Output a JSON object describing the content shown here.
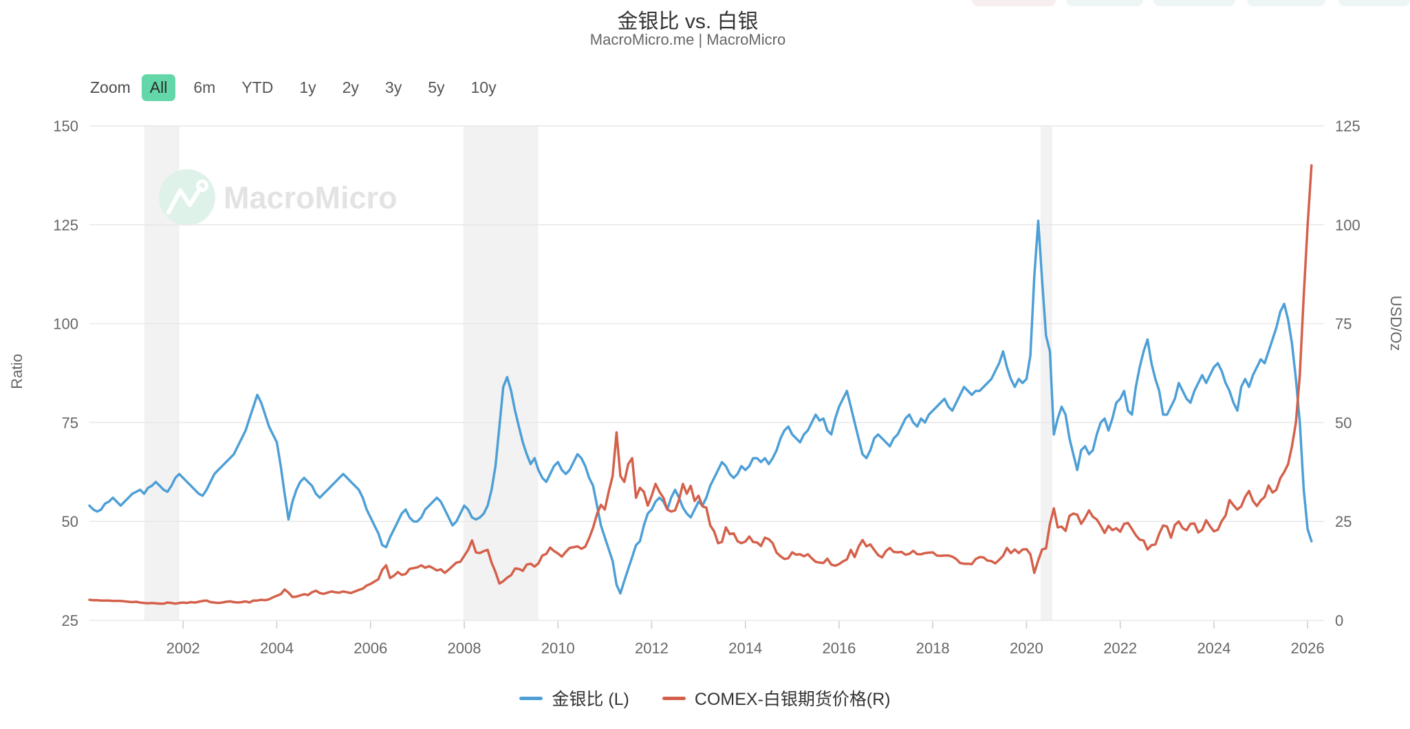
{
  "header": {
    "title": "金银比 vs. 白银",
    "subtitle": "MacroMicro.me | MacroMicro"
  },
  "top_partial_buttons": [
    "#f8eef0",
    "#eef5f5",
    "#eef5f5",
    "#eef5f5",
    "#eef5f5"
  ],
  "toolbar": {
    "zoom_label": "Zoom",
    "ranges": [
      "All",
      "6m",
      "YTD",
      "1y",
      "2y",
      "3y",
      "5y",
      "10y"
    ],
    "selected": "All",
    "selected_color": "#63d7a7"
  },
  "watermark": {
    "text": "MacroMicro"
  },
  "legend": [
    {
      "label": "金银比 (L)",
      "color": "#4d9fd6"
    },
    {
      "label": "COMEX-白银期货价格(R)",
      "color": "#d4604a"
    }
  ],
  "chart_data": {
    "type": "line",
    "title": "金银比 vs. 白银",
    "subtitle": "MacroMicro.me | MacroMicro",
    "grid": true,
    "legend_position": "bottom",
    "x_axis": {
      "labels": [
        "2002",
        "2004",
        "2006",
        "2008",
        "2010",
        "2012",
        "2014",
        "2016",
        "2018",
        "2020",
        "2022",
        "2024",
        "2026"
      ],
      "range": [
        2000.0,
        2026.35
      ]
    },
    "y_left": {
      "title": "Ratio",
      "ticks": [
        25,
        50,
        75,
        100,
        125,
        150
      ],
      "range": [
        25,
        150
      ]
    },
    "y_right": {
      "title": "USD/Oz",
      "ticks": [
        0,
        25,
        50,
        75,
        100,
        125
      ],
      "range": [
        0,
        125
      ]
    },
    "recession_bands": [
      [
        2001.17,
        2001.92
      ],
      [
        2007.98,
        2009.58
      ],
      [
        2020.3,
        2020.55
      ]
    ],
    "band_color": "#f2f2f2",
    "series": [
      {
        "name": "金银比 (L)",
        "axis": "left",
        "color": "#4d9fd6",
        "x_start": 2000.0,
        "x_step_years": 0.083333,
        "values": [
          54,
          53,
          52.5,
          53,
          54.5,
          55,
          56,
          55,
          54,
          55,
          56,
          57,
          57.5,
          58,
          57,
          58.5,
          59,
          60,
          59,
          58,
          57.5,
          59,
          61,
          62,
          61,
          60,
          59,
          58,
          57,
          56.5,
          58,
          60,
          62,
          63,
          64,
          65,
          66,
          67,
          69,
          71,
          73,
          76,
          79,
          82,
          80,
          77,
          74,
          72,
          70,
          64,
          57,
          50.5,
          55,
          58,
          60,
          61,
          60,
          59,
          57,
          56,
          57,
          58,
          59,
          60,
          61,
          62,
          61,
          60,
          59,
          58,
          56,
          53,
          51,
          49,
          47,
          44,
          43.5,
          46,
          48,
          50,
          52,
          53,
          51,
          50,
          50,
          51,
          53,
          54,
          55,
          56,
          55,
          53,
          51,
          49,
          50,
          52,
          54,
          53,
          51,
          50.5,
          51,
          52,
          54,
          58,
          64,
          74,
          84,
          86.5,
          83,
          78,
          74,
          70,
          67,
          64.5,
          66,
          63,
          61,
          60,
          62,
          64,
          65,
          63,
          62,
          63,
          65,
          67,
          66,
          64,
          61,
          59,
          54,
          49,
          46,
          43,
          40,
          34,
          31.8,
          35,
          38,
          41,
          44,
          45,
          49,
          52,
          53,
          55,
          56,
          55,
          53,
          56,
          58,
          56,
          53.5,
          52,
          51,
          53,
          55,
          54,
          56,
          59,
          61,
          63,
          65,
          64,
          62,
          61,
          62,
          64,
          63,
          64,
          66,
          66,
          65,
          66,
          64.5,
          66,
          68,
          71,
          73,
          74,
          72,
          71,
          70,
          72,
          73,
          75,
          77,
          75.5,
          76,
          73,
          72,
          76,
          79,
          81,
          83,
          79,
          75,
          71,
          67,
          66,
          68,
          71,
          72,
          71,
          70,
          69,
          71,
          72,
          74,
          76,
          77,
          75,
          74,
          76,
          75,
          77,
          78,
          79,
          80,
          81,
          79,
          78,
          80,
          82,
          84,
          83,
          82,
          83,
          83,
          84,
          85,
          86,
          88,
          90,
          93,
          89,
          86,
          84,
          86,
          85,
          86,
          92,
          112,
          126,
          111,
          97,
          93,
          72,
          76,
          79,
          77,
          71,
          67,
          63,
          68,
          69,
          67,
          68,
          72,
          75,
          76,
          73,
          76,
          80,
          81,
          83,
          78,
          77,
          84,
          89,
          93,
          96,
          90,
          86,
          83,
          77,
          77,
          79,
          81,
          85,
          83,
          81,
          80,
          83,
          85,
          87,
          85,
          87,
          89,
          90,
          88,
          85,
          83,
          80,
          78,
          84,
          86,
          84,
          87,
          89,
          91,
          90,
          93,
          96,
          99,
          103,
          105,
          101,
          95,
          86,
          75,
          58,
          48,
          45
        ]
      },
      {
        "name": "COMEX-白银期货价格(R)",
        "axis": "right",
        "color": "#d4604a",
        "x_start": 2000.0,
        "x_step_years": 0.083333,
        "values": [
          5.2,
          5.1,
          5.1,
          5.0,
          5.0,
          5.0,
          4.9,
          4.9,
          4.9,
          4.8,
          4.7,
          4.6,
          4.7,
          4.5,
          4.4,
          4.3,
          4.4,
          4.3,
          4.2,
          4.2,
          4.5,
          4.4,
          4.2,
          4.4,
          4.5,
          4.4,
          4.6,
          4.5,
          4.7,
          4.9,
          5.0,
          4.6,
          4.5,
          4.4,
          4.5,
          4.7,
          4.8,
          4.6,
          4.5,
          4.6,
          4.8,
          4.5,
          5.0,
          5.0,
          5.2,
          5.1,
          5.3,
          5.8,
          6.2,
          6.6,
          7.8,
          7.0,
          5.9,
          6.0,
          6.3,
          6.6,
          6.4,
          7.1,
          7.5,
          6.9,
          6.7,
          7.0,
          7.3,
          7.1,
          7.0,
          7.3,
          7.1,
          6.9,
          7.3,
          7.7,
          8.0,
          8.8,
          9.2,
          9.8,
          10.4,
          12.8,
          13.9,
          10.7,
          11.3,
          12.2,
          11.5,
          11.7,
          13.0,
          13.2,
          13.4,
          13.9,
          13.3,
          13.7,
          13.2,
          12.6,
          12.9,
          12.0,
          12.8,
          13.7,
          14.6,
          14.8,
          16.3,
          17.8,
          20.2,
          17.2,
          17.0,
          17.5,
          17.8,
          14.6,
          12.2,
          9.3,
          9.9,
          10.8,
          11.4,
          13.1,
          13.0,
          12.5,
          14.1,
          14.3,
          13.6,
          14.4,
          16.4,
          16.8,
          18.4,
          17.5,
          16.9,
          16.1,
          17.3,
          18.3,
          18.5,
          18.7,
          18.1,
          18.6,
          20.8,
          23.4,
          26.9,
          29.2,
          28.0,
          32.5,
          36.5,
          47.5,
          36.5,
          35.0,
          39.5,
          41.0,
          31.0,
          33.5,
          32.5,
          29.0,
          31.5,
          34.5,
          32.5,
          31.0,
          28.0,
          27.5,
          27.8,
          30.5,
          34.5,
          32.0,
          34.0,
          30.2,
          31.5,
          28.8,
          28.5,
          24.0,
          22.5,
          19.5,
          19.8,
          23.5,
          21.8,
          22.0,
          20.0,
          19.5,
          19.9,
          21.2,
          19.8,
          19.7,
          18.8,
          20.9,
          20.5,
          19.5,
          17.1,
          16.2,
          15.5,
          15.7,
          17.2,
          16.6,
          16.7,
          16.2,
          16.7,
          15.7,
          14.8,
          14.6,
          14.5,
          15.6,
          14.1,
          13.8,
          14.2,
          14.9,
          15.4,
          17.8,
          16.0,
          18.6,
          20.3,
          18.7,
          19.2,
          17.8,
          16.5,
          15.9,
          17.5,
          18.3,
          17.3,
          17.2,
          17.3,
          16.6,
          16.8,
          17.6,
          16.7,
          16.7,
          17.0,
          17.1,
          17.2,
          16.4,
          16.3,
          16.4,
          16.4,
          16.1,
          15.5,
          14.5,
          14.3,
          14.3,
          14.2,
          15.5,
          16.0,
          15.9,
          15.1,
          15.0,
          14.4,
          15.3,
          16.3,
          18.3,
          17.0,
          17.9,
          17.0,
          17.9,
          18.0,
          16.7,
          12.0,
          15.2,
          17.9,
          18.2,
          24.4,
          28.3,
          23.5,
          23.7,
          22.6,
          26.4,
          27.0,
          26.7,
          24.4,
          25.9,
          27.8,
          26.2,
          25.5,
          23.9,
          22.1,
          23.9,
          22.8,
          23.3,
          22.4,
          24.4,
          24.6,
          23.1,
          21.5,
          20.4,
          20.2,
          17.9,
          19.0,
          19.2,
          21.9,
          24.0,
          23.7,
          20.9,
          24.1,
          25.0,
          23.3,
          22.8,
          24.4,
          24.5,
          22.2,
          22.9,
          25.3,
          23.8,
          22.5,
          22.9,
          25.1,
          26.5,
          30.4,
          29.1,
          28.0,
          28.8,
          31.2,
          32.7,
          30.2,
          28.9,
          30.3,
          31.2,
          34.1,
          32.3,
          33.0,
          35.9,
          37.5,
          39.5,
          44.0,
          50.0,
          62.0,
          82.0,
          100,
          115
        ]
      }
    ]
  }
}
